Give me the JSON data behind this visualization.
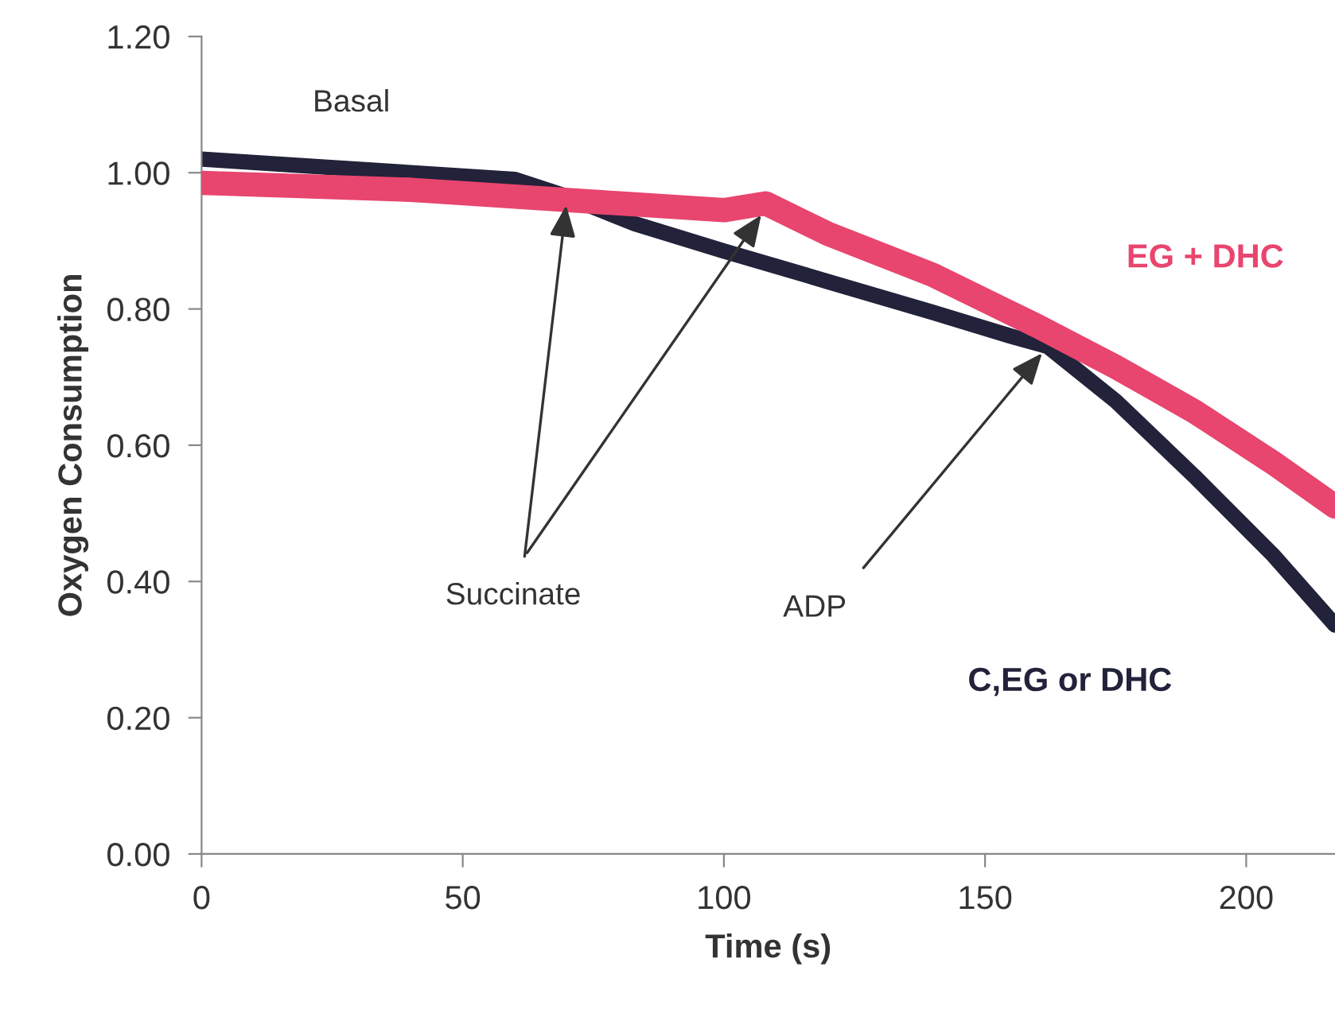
{
  "chart_data": {
    "type": "line",
    "xlabel": "Time (s)",
    "ylabel": "Oxygen Consumption",
    "xlim": [
      0,
      217
    ],
    "xticks": [
      0,
      50,
      100,
      150,
      200
    ],
    "ylim": [
      0,
      1.2
    ],
    "yticks": [
      {
        "value": 0,
        "label": "0.00"
      },
      {
        "value": 0.2,
        "label": "0.20"
      },
      {
        "value": 0.4,
        "label": "0.40"
      },
      {
        "value": 0.6,
        "label": "0.60"
      },
      {
        "value": 0.8,
        "label": "0.80"
      },
      {
        "value": 1.0,
        "label": "1.00"
      },
      {
        "value": 1.2,
        "label": "1.20"
      }
    ],
    "grid": false,
    "legend": false,
    "line_style": "solid",
    "series": [
      {
        "name": "EG + DHC",
        "color": "#e8456f",
        "x": [
          0,
          20,
          40,
          60,
          80,
          100,
          108,
          120,
          140,
          160,
          175,
          190,
          205,
          217
        ],
        "values": [
          0.985,
          0.98,
          0.975,
          0.965,
          0.955,
          0.945,
          0.955,
          0.91,
          0.85,
          0.775,
          0.715,
          0.65,
          0.575,
          0.51
        ]
      },
      {
        "name": "C,EG or DHC",
        "color": "#22223a",
        "x": [
          0,
          20,
          40,
          60,
          70,
          83,
          100,
          120,
          140,
          155,
          162,
          175,
          190,
          205,
          217
        ],
        "values": [
          1.02,
          1.01,
          1.0,
          0.99,
          0.965,
          0.925,
          0.885,
          0.84,
          0.795,
          0.76,
          0.745,
          0.665,
          0.555,
          0.44,
          0.336
        ]
      }
    ],
    "annotations": [
      "Basal",
      {
        "text": "Succinate",
        "x": 70,
        "y": 0.965
      },
      {
        "text": "ADP",
        "x": 162,
        "y": 0.745
      }
    ]
  }
}
